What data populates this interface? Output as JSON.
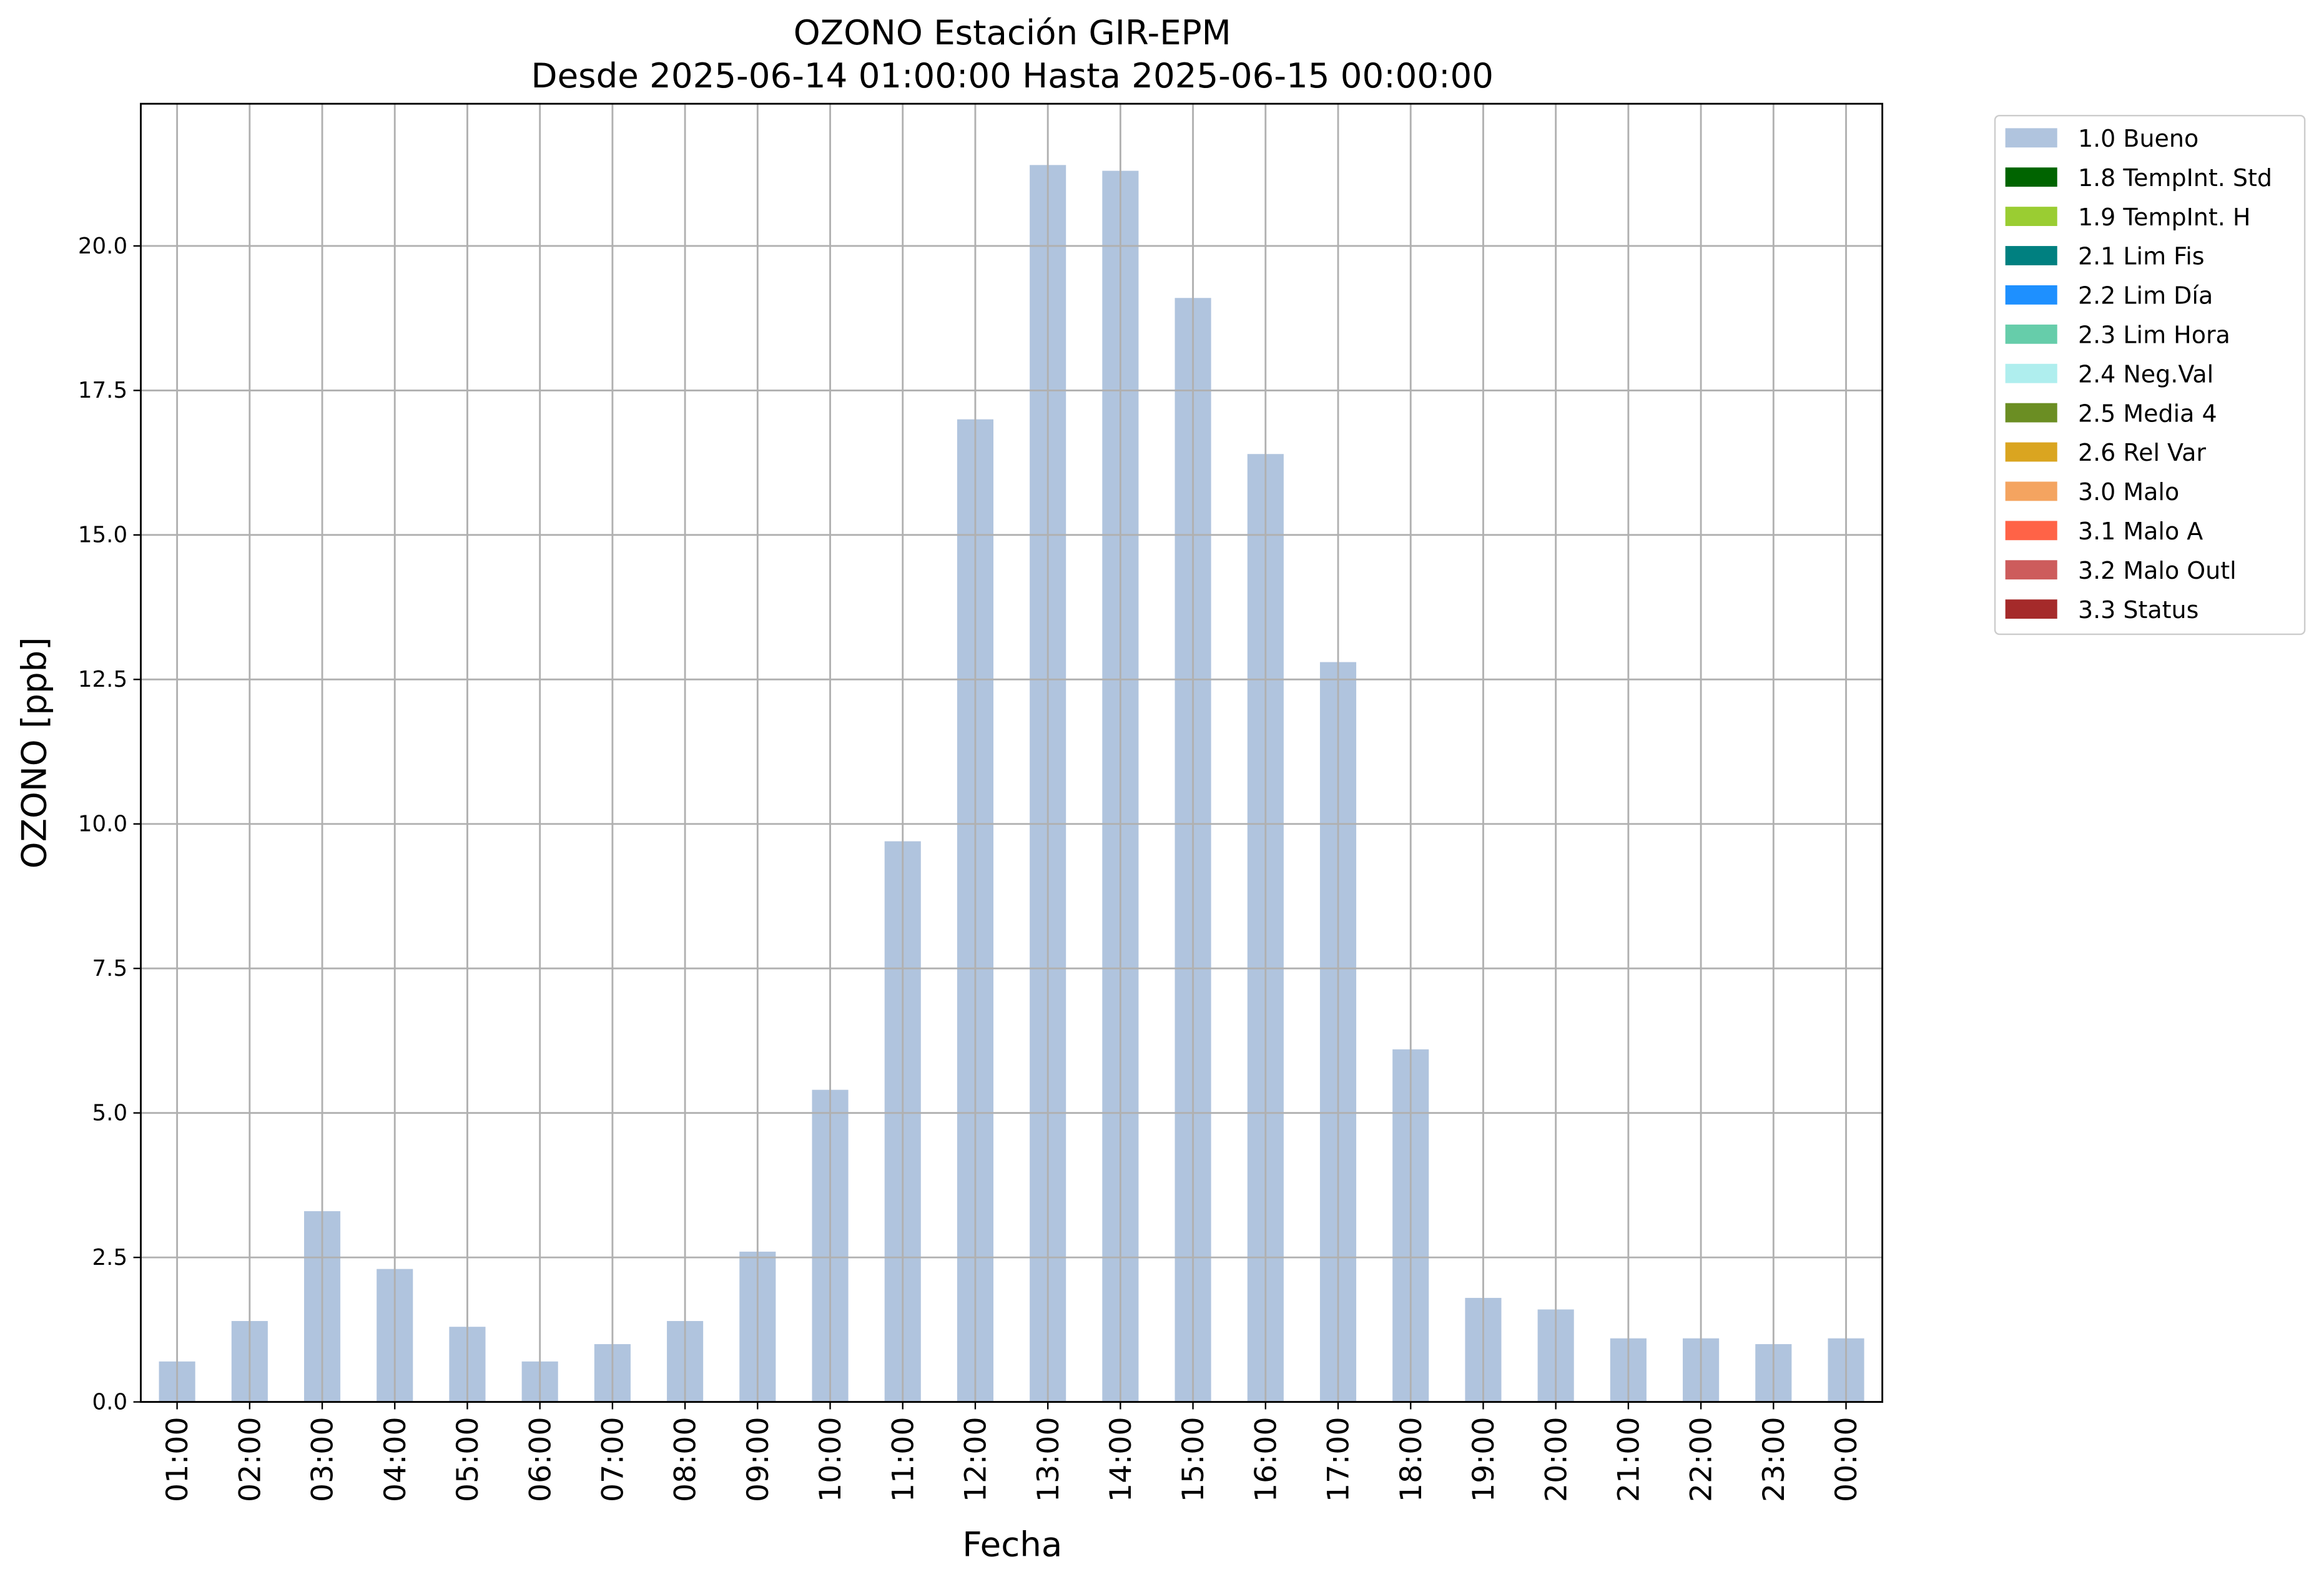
{
  "chart_data": {
    "type": "bar",
    "stacked": true,
    "title": "OZONO Estación GIR-EPM",
    "subtitle": "Desde 2025-06-14 01:00:00 Hasta 2025-06-15 00:00:00",
    "x_label": "Fecha",
    "y_label": "OZONO [ppb]",
    "categories": [
      "01:00",
      "02:00",
      "03:00",
      "04:00",
      "05:00",
      "06:00",
      "07:00",
      "08:00",
      "09:00",
      "10:00",
      "11:00",
      "12:00",
      "13:00",
      "14:00",
      "15:00",
      "16:00",
      "17:00",
      "18:00",
      "19:00",
      "20:00",
      "21:00",
      "22:00",
      "23:00",
      "00:00"
    ],
    "series": [
      {
        "name": "1.0 Bueno",
        "color": "#b0c4de",
        "values": [
          0.7,
          1.4,
          3.3,
          2.3,
          1.3,
          0.7,
          1.0,
          1.4,
          2.6,
          5.4,
          9.7,
          17.0,
          21.4,
          21.3,
          19.1,
          16.4,
          12.8,
          6.1,
          1.8,
          1.6,
          1.1,
          1.1,
          1.0,
          1.1
        ]
      },
      {
        "name": "1.8 TempInt. Std",
        "color": "#006400",
        "values": [
          0,
          0,
          0,
          0,
          0,
          0,
          0,
          0,
          0,
          0,
          0,
          0,
          0,
          0,
          0,
          0,
          0,
          0,
          0,
          0,
          0,
          0,
          0,
          0
        ]
      },
      {
        "name": "1.9 TempInt. H",
        "color": "#9acd32",
        "values": [
          0,
          0,
          0,
          0,
          0,
          0,
          0,
          0,
          0,
          0,
          0,
          0,
          0,
          0,
          0,
          0,
          0,
          0,
          0,
          0,
          0,
          0,
          0,
          0
        ]
      },
      {
        "name": "2.1 Lim Fis",
        "color": "#008080",
        "values": [
          0,
          0,
          0,
          0,
          0,
          0,
          0,
          0,
          0,
          0,
          0,
          0,
          0,
          0,
          0,
          0,
          0,
          0,
          0,
          0,
          0,
          0,
          0,
          0
        ]
      },
      {
        "name": "2.2 Lim Día",
        "color": "#1e90ff",
        "values": [
          0,
          0,
          0,
          0,
          0,
          0,
          0,
          0,
          0,
          0,
          0,
          0,
          0,
          0,
          0,
          0,
          0,
          0,
          0,
          0,
          0,
          0,
          0,
          0
        ]
      },
      {
        "name": "2.3 Lim Hora",
        "color": "#66cdaa",
        "values": [
          0,
          0,
          0,
          0,
          0,
          0,
          0,
          0,
          0,
          0,
          0,
          0,
          0,
          0,
          0,
          0,
          0,
          0,
          0,
          0,
          0,
          0,
          0,
          0
        ]
      },
      {
        "name": "2.4 Neg.Val",
        "color": "#afeeee",
        "values": [
          0,
          0,
          0,
          0,
          0,
          0,
          0,
          0,
          0,
          0,
          0,
          0,
          0,
          0,
          0,
          0,
          0,
          0,
          0,
          0,
          0,
          0,
          0,
          0
        ]
      },
      {
        "name": "2.5 Media 4",
        "color": "#6b8e23",
        "values": [
          0,
          0,
          0,
          0,
          0,
          0,
          0,
          0,
          0,
          0,
          0,
          0,
          0,
          0,
          0,
          0,
          0,
          0,
          0,
          0,
          0,
          0,
          0,
          0
        ]
      },
      {
        "name": "2.6 Rel Var",
        "color": "#daa520",
        "values": [
          0,
          0,
          0,
          0,
          0,
          0,
          0,
          0,
          0,
          0,
          0,
          0,
          0,
          0,
          0,
          0,
          0,
          0,
          0,
          0,
          0,
          0,
          0,
          0
        ]
      },
      {
        "name": "3.0 Malo",
        "color": "#f4a460",
        "values": [
          0,
          0,
          0,
          0,
          0,
          0,
          0,
          0,
          0,
          0,
          0,
          0,
          0,
          0,
          0,
          0,
          0,
          0,
          0,
          0,
          0,
          0,
          0,
          0
        ]
      },
      {
        "name": "3.1 Malo A",
        "color": "#ff6347",
        "values": [
          0,
          0,
          0,
          0,
          0,
          0,
          0,
          0,
          0,
          0,
          0,
          0,
          0,
          0,
          0,
          0,
          0,
          0,
          0,
          0,
          0,
          0,
          0,
          0
        ]
      },
      {
        "name": "3.2 Malo Outl",
        "color": "#cd5c5c",
        "values": [
          0,
          0,
          0,
          0,
          0,
          0,
          0,
          0,
          0,
          0,
          0,
          0,
          0,
          0,
          0,
          0,
          0,
          0,
          0,
          0,
          0,
          0,
          0,
          0
        ]
      },
      {
        "name": "3.3 Status",
        "color": "#a52a2a",
        "values": [
          0,
          0,
          0,
          0,
          0,
          0,
          0,
          0,
          0,
          0,
          0,
          0,
          0,
          0,
          0,
          0,
          0,
          0,
          0,
          0,
          0,
          0,
          0,
          0
        ]
      }
    ],
    "ylim": [
      0,
      22.46
    ],
    "yticks": [
      {
        "value": 0,
        "label": "0.0"
      },
      2.5,
      {
        "value": 5,
        "label": "5.0"
      },
      7.5,
      {
        "value": 10,
        "label": "10.0"
      },
      12.5,
      {
        "value": 15,
        "label": "15.0"
      },
      17.5,
      {
        "value": 20,
        "label": "20.0"
      }
    ],
    "grid": true,
    "legend": "outside right"
  }
}
